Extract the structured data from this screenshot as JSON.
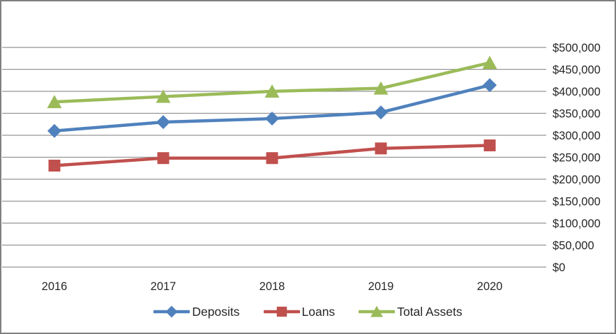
{
  "chart_data": {
    "type": "line",
    "title": "",
    "categories": [
      "2016",
      "2017",
      "2018",
      "2019",
      "2020"
    ],
    "series": [
      {
        "name": "Deposits",
        "marker": "diamond",
        "color": "#4F81BD",
        "values": [
          310000,
          330000,
          338000,
          352000,
          414000
        ]
      },
      {
        "name": "Loans",
        "marker": "square",
        "color": "#C0504D",
        "values": [
          231000,
          248000,
          248000,
          270000,
          277000
        ]
      },
      {
        "name": "Total Assets",
        "marker": "triangle",
        "color": "#9BBB59",
        "values": [
          376000,
          388000,
          400000,
          407000,
          465000
        ]
      }
    ],
    "y_axis": {
      "min": 0,
      "max": 500000,
      "step": 50000,
      "side": "right",
      "tick_labels": [
        "$0",
        "$50,000",
        "$100,000",
        "$150,000",
        "$200,000",
        "$250,000",
        "$300,000",
        "$350,000",
        "$400,000",
        "$450,000",
        "$500,000"
      ]
    },
    "x_axis": {
      "tick_labels": [
        "2016",
        "2017",
        "2018",
        "2019",
        "2020"
      ]
    },
    "grid": true,
    "legend": {
      "position": "bottom",
      "items": [
        "Deposits",
        "Loans",
        "Total Assets"
      ]
    },
    "colors": {
      "gridline": "#949494",
      "frame_border": "#808080",
      "text": "#262626",
      "background": "#ffffff"
    }
  }
}
